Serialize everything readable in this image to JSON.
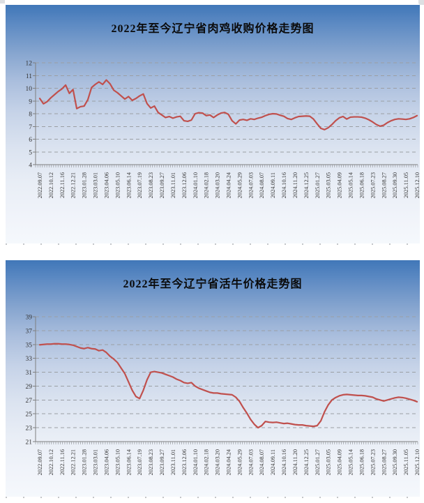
{
  "page": {
    "background_color": "#ffffff",
    "panel_gradient_top": "#4077b8",
    "panel_gradient_bottom": "#f5f8fc"
  },
  "chart_data": [
    {
      "type": "line",
      "title": "2022年至今辽宁省肉鸡收购价格走势图",
      "xlabel": "",
      "ylabel": "",
      "legend": "none",
      "grid": "horizontal-dashed",
      "line_color": "#c0504d",
      "gridline_color": "#9b9fa4",
      "axis_color": "#7f7f7f",
      "tick_label_color": "#333333",
      "ylim": [
        4,
        12
      ],
      "yticks": [
        4,
        5,
        6,
        7,
        8,
        9,
        10,
        11,
        12
      ],
      "categories": [
        "2022.09.07",
        "2022.10.12",
        "2022.11.16",
        "2022.12.21",
        "2023.01.28",
        "2023.03.01",
        "2023.04.06",
        "2023.05.10",
        "2023.06.14",
        "2023.07.19",
        "2023.08.23",
        "2023.09.27",
        "2023.11.01",
        "2023.12.06",
        "2024.01.10",
        "2024.02.18",
        "2024.03.20",
        "2024.04.24",
        "2024.05.29",
        "2024.07.03",
        "2024.08.07",
        "2024.09.11",
        "2024.10.16",
        "2024.11.20",
        "2024.12.25",
        "2025.01.27",
        "2025.03.05",
        "2025.04.09",
        "2025.05.14",
        "2025.06.18",
        "2025.07.23",
        "2025.08.27",
        "2025.09.30",
        "2025.11.05",
        "2025.12.10"
      ],
      "points_per_label_interval": 3,
      "values": [
        9.2,
        8.78,
        8.95,
        9.25,
        9.5,
        9.75,
        9.95,
        10.25,
        9.6,
        9.9,
        8.4,
        8.55,
        8.6,
        9.1,
        10.05,
        10.3,
        10.5,
        10.3,
        10.65,
        10.35,
        9.85,
        9.65,
        9.4,
        9.15,
        9.35,
        9.05,
        9.2,
        9.4,
        9.55,
        8.8,
        8.45,
        8.6,
        8.1,
        7.9,
        7.7,
        7.78,
        7.65,
        7.75,
        7.8,
        7.45,
        7.4,
        7.5,
        8.0,
        8.08,
        8.05,
        7.85,
        7.9,
        7.7,
        7.9,
        8.05,
        8.1,
        7.95,
        7.45,
        7.2,
        7.5,
        7.55,
        7.48,
        7.6,
        7.55,
        7.65,
        7.72,
        7.85,
        7.95,
        8.0,
        7.98,
        7.88,
        7.8,
        7.62,
        7.55,
        7.68,
        7.78,
        7.8,
        7.82,
        7.8,
        7.58,
        7.2,
        6.85,
        6.75,
        6.9,
        7.15,
        7.45,
        7.68,
        7.78,
        7.58,
        7.73,
        7.75,
        7.75,
        7.73,
        7.65,
        7.52,
        7.35,
        7.15,
        7.02,
        7.1,
        7.3,
        7.45,
        7.55,
        7.6,
        7.58,
        7.55,
        7.6,
        7.7,
        7.85
      ]
    },
    {
      "type": "line",
      "title": "2022年至今辽宁省活牛价格走势图",
      "xlabel": "",
      "ylabel": "",
      "legend": "none",
      "grid": "horizontal-dashed",
      "line_color": "#c0504d",
      "gridline_color": "#9b9fa4",
      "axis_color": "#7f7f7f",
      "tick_label_color": "#333333",
      "ylim": [
        21,
        39
      ],
      "yticks": [
        21,
        23,
        25,
        27,
        29,
        31,
        33,
        35,
        37,
        39
      ],
      "categories": [
        "2022.09.07",
        "2022.10.12",
        "2022.11.16",
        "2022.12.21",
        "2023.01.28",
        "2023.03.01",
        "2023.04.06",
        "2023.05.10",
        "2023.06.14",
        "2023.07.19",
        "2023.08.23",
        "2023.09.27",
        "2023.11.01",
        "2023.12.06",
        "2024.01.10",
        "2024.02.18",
        "2024.03.20",
        "2024.04.24",
        "2024.05.29",
        "2024.07.03",
        "2024.08.07",
        "2024.09.11",
        "2024.10.16",
        "2024.11.20",
        "2024.12.25",
        "2025.01.27",
        "2025.03.05",
        "2025.04.09",
        "2025.05.14",
        "2025.06.18",
        "2025.07.23",
        "2025.08.27",
        "2025.09.30",
        "2025.11.05",
        "2025.12.10"
      ],
      "points_per_label_interval": 3,
      "values": [
        34.95,
        35.0,
        35.05,
        35.05,
        35.1,
        35.1,
        35.05,
        35.05,
        35.0,
        34.9,
        34.7,
        34.5,
        34.4,
        34.55,
        34.4,
        34.35,
        34.1,
        34.2,
        33.85,
        33.3,
        32.9,
        32.4,
        31.6,
        30.8,
        29.6,
        28.4,
        27.5,
        27.2,
        28.4,
        29.9,
        31.0,
        31.1,
        31.0,
        30.9,
        30.7,
        30.5,
        30.3,
        30.0,
        29.8,
        29.5,
        29.4,
        29.5,
        29.0,
        28.7,
        28.5,
        28.3,
        28.1,
        28.0,
        28.0,
        27.9,
        27.85,
        27.8,
        27.75,
        27.4,
        26.8,
        25.9,
        25.1,
        24.2,
        23.5,
        23.0,
        23.3,
        23.9,
        23.8,
        23.75,
        23.8,
        23.7,
        23.6,
        23.65,
        23.55,
        23.45,
        23.4,
        23.4,
        23.3,
        23.25,
        23.2,
        23.3,
        24.0,
        25.3,
        26.3,
        27.0,
        27.35,
        27.6,
        27.75,
        27.8,
        27.75,
        27.7,
        27.65,
        27.65,
        27.6,
        27.5,
        27.4,
        27.15,
        27.0,
        26.85,
        27.0,
        27.15,
        27.3,
        27.4,
        27.35,
        27.25,
        27.1,
        26.95,
        26.75
      ]
    }
  ]
}
